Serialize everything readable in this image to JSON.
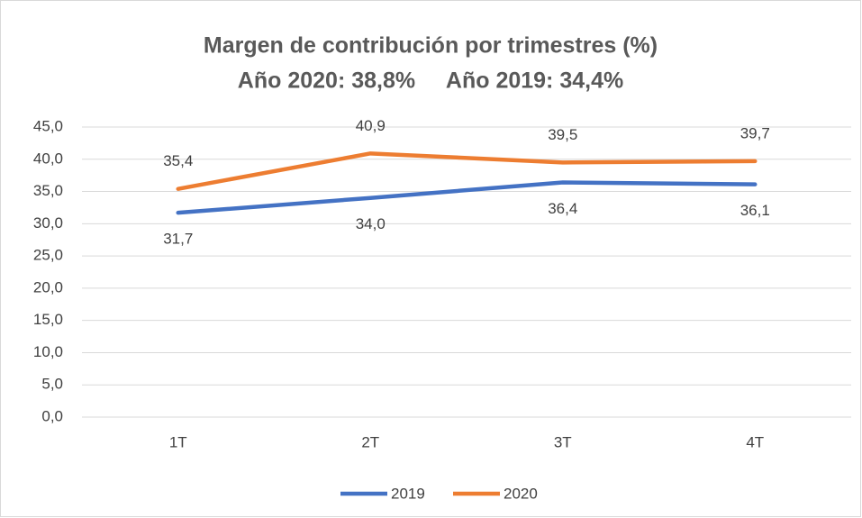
{
  "chart_data": {
    "type": "line",
    "title": "Margen de contribución por trimestres (%)",
    "subtitle": "Año 2020: 38,8%     Año 2019: 34,4%",
    "categories": [
      "1T",
      "2T",
      "3T",
      "4T"
    ],
    "series": [
      {
        "name": "2019",
        "color": "#4472c4",
        "values": [
          31.7,
          34.0,
          36.4,
          36.1
        ],
        "value_labels": [
          "31,7",
          "34,0",
          "36,4",
          "36,1"
        ],
        "label_position": "below"
      },
      {
        "name": "2020",
        "color": "#ed7d31",
        "values": [
          35.4,
          40.9,
          39.5,
          39.7
        ],
        "value_labels": [
          "35,4",
          "40,9",
          "39,5",
          "39,7"
        ],
        "label_position": "above"
      }
    ],
    "ylim": [
      0,
      45
    ],
    "yticks": [
      {
        "value": 0,
        "label": "0,0"
      },
      {
        "value": 5,
        "label": "5,0"
      },
      {
        "value": 10,
        "label": "10,0"
      },
      {
        "value": 15,
        "label": "15,0"
      },
      {
        "value": 20,
        "label": "20,0"
      },
      {
        "value": 25,
        "label": "25,0"
      },
      {
        "value": 30,
        "label": "30,0"
      },
      {
        "value": 35,
        "label": "35,0"
      },
      {
        "value": 40,
        "label": "40,0"
      },
      {
        "value": 45,
        "label": "45,0"
      }
    ],
    "grid": true,
    "legend": "bottom"
  }
}
